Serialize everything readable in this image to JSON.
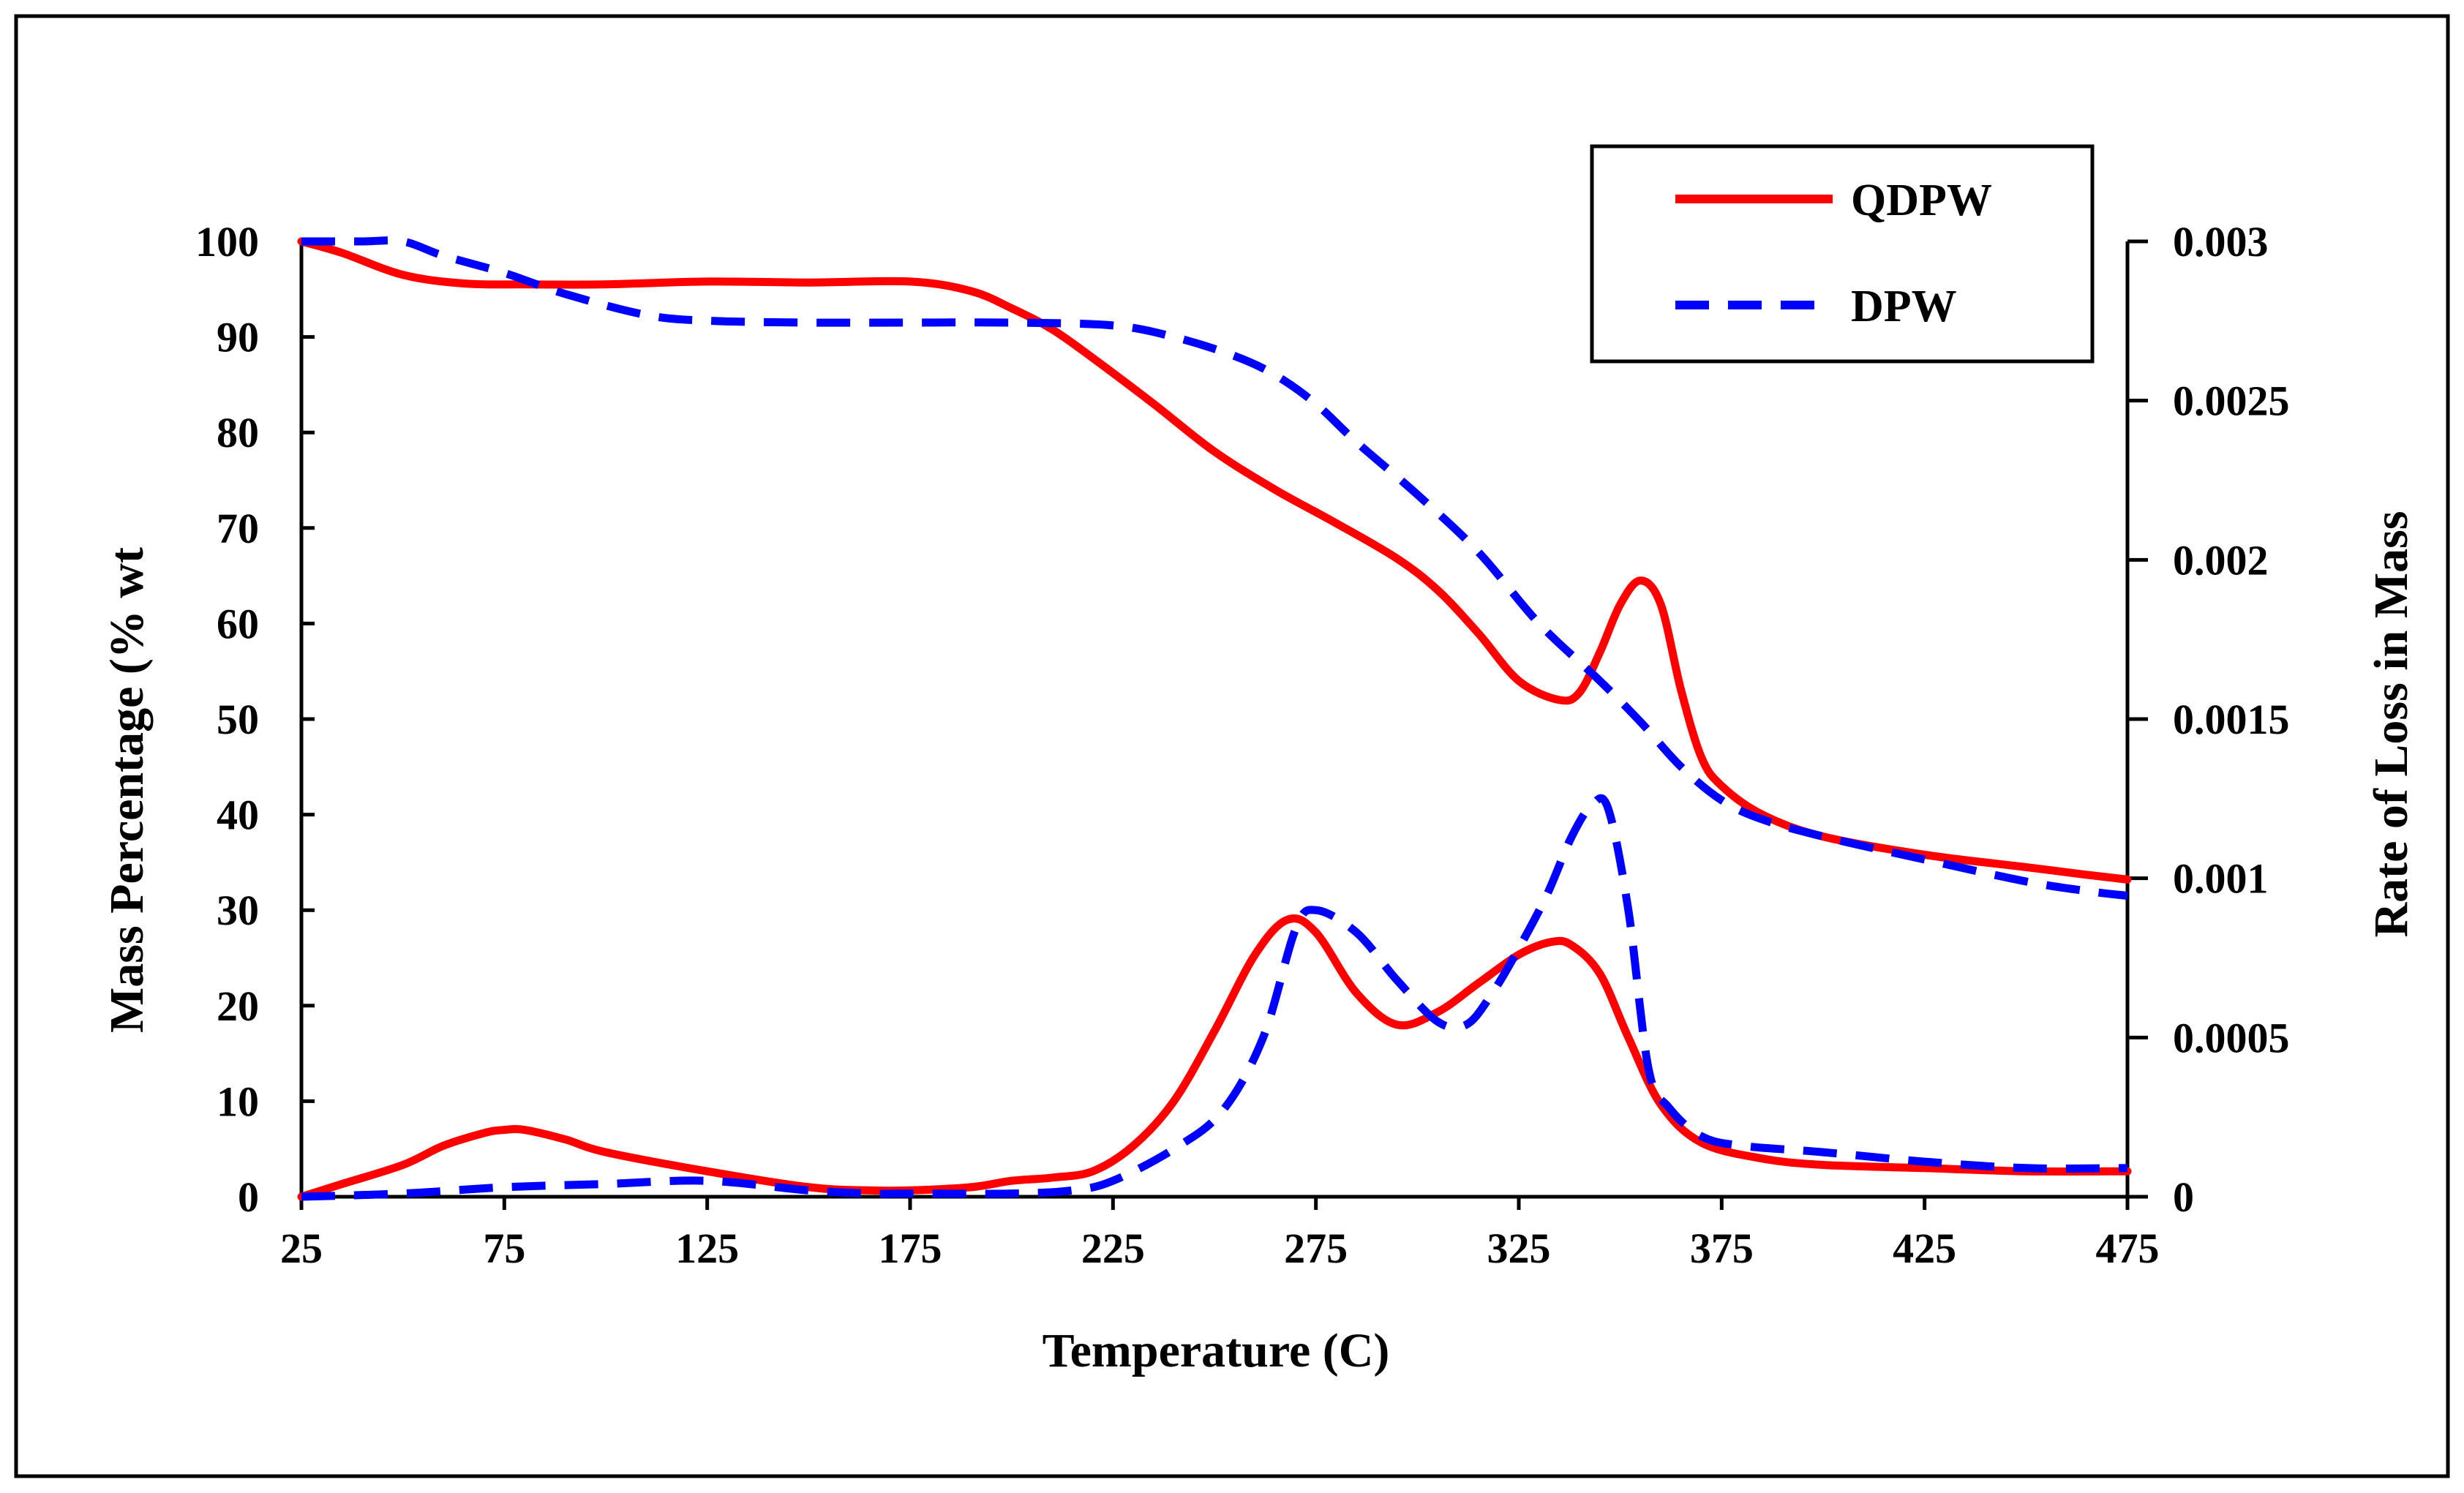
{
  "chart_data": {
    "type": "line",
    "title": "",
    "xlabel": "Temperature (C)",
    "ylabel": "Mass Percentage (% wt",
    "y2label": "Rate of Loss in Mass",
    "xlim": [
      25,
      475
    ],
    "ylim": [
      0,
      100
    ],
    "y2lim": [
      0,
      0.003
    ],
    "x_ticks": [
      "25",
      "75",
      "125",
      "175",
      "225",
      "275",
      "325",
      "375",
      "425",
      "475"
    ],
    "y_ticks": [
      "0",
      "10",
      "20",
      "30",
      "40",
      "50",
      "60",
      "70",
      "80",
      "90",
      "100"
    ],
    "y2_ticks": [
      "0",
      "0.0005",
      "0.001",
      "0.0015",
      "0.002",
      "0.0025",
      "0.003"
    ],
    "grid": false,
    "legend": {
      "position": "top-right",
      "entries": [
        {
          "label": "QDPW",
          "color": "#ff0000",
          "dash": "solid"
        },
        {
          "label": "DPW",
          "color": "#0000ff",
          "dash": "dashed"
        }
      ]
    },
    "series": [
      {
        "name": "QDPW",
        "kind": "mass",
        "axis": "left",
        "color": "#ff0000",
        "dash": "solid",
        "points": [
          [
            25,
            100
          ],
          [
            35,
            98.8
          ],
          [
            50,
            96.5
          ],
          [
            65,
            95.6
          ],
          [
            80,
            95.5
          ],
          [
            100,
            95.5
          ],
          [
            125,
            95.8
          ],
          [
            150,
            95.7
          ],
          [
            175,
            95.8
          ],
          [
            190,
            94.8
          ],
          [
            200,
            93
          ],
          [
            210,
            90.8
          ],
          [
            220,
            87.8
          ],
          [
            235,
            83
          ],
          [
            250,
            78
          ],
          [
            265,
            74
          ],
          [
            280,
            70.5
          ],
          [
            295,
            66.8
          ],
          [
            305,
            63.5
          ],
          [
            315,
            59
          ],
          [
            325,
            54
          ],
          [
            335,
            52
          ],
          [
            340,
            52.8
          ],
          [
            345,
            57
          ],
          [
            350,
            62
          ],
          [
            355,
            64.5
          ],
          [
            360,
            62
          ],
          [
            365,
            53
          ],
          [
            370,
            46
          ],
          [
            375,
            43
          ],
          [
            385,
            40
          ],
          [
            400,
            37.7
          ],
          [
            425,
            35.8
          ],
          [
            450,
            34.5
          ],
          [
            465,
            33.7
          ],
          [
            475,
            33.2
          ]
        ]
      },
      {
        "name": "DPW",
        "kind": "mass",
        "axis": "left",
        "color": "#0000ff",
        "dash": "dashed",
        "points": [
          [
            25,
            100
          ],
          [
            40,
            100
          ],
          [
            50,
            100
          ],
          [
            60,
            98.5
          ],
          [
            75,
            96.7
          ],
          [
            90,
            94.5
          ],
          [
            110,
            92.3
          ],
          [
            125,
            91.7
          ],
          [
            150,
            91.5
          ],
          [
            175,
            91.5
          ],
          [
            200,
            91.5
          ],
          [
            225,
            91.2
          ],
          [
            240,
            90
          ],
          [
            255,
            88
          ],
          [
            265,
            86
          ],
          [
            275,
            83
          ],
          [
            285,
            79
          ],
          [
            300,
            73.5
          ],
          [
            315,
            67.5
          ],
          [
            330,
            60
          ],
          [
            345,
            54
          ],
          [
            355,
            49.7
          ],
          [
            365,
            45
          ],
          [
            375,
            41.5
          ],
          [
            385,
            39.5
          ],
          [
            400,
            37.7
          ],
          [
            425,
            35.3
          ],
          [
            450,
            33
          ],
          [
            465,
            32
          ],
          [
            475,
            31.5
          ]
        ]
      },
      {
        "name": "QDPW",
        "kind": "rate",
        "axis": "right",
        "color": "#ff0000",
        "dash": "solid",
        "points": [
          [
            25,
            0
          ],
          [
            35,
            4e-05
          ],
          [
            50,
            0.0001
          ],
          [
            60,
            0.00016
          ],
          [
            70,
            0.0002
          ],
          [
            75,
            0.00021
          ],
          [
            80,
            0.00021
          ],
          [
            90,
            0.00018
          ],
          [
            100,
            0.00014
          ],
          [
            125,
            8e-05
          ],
          [
            150,
            3e-05
          ],
          [
            165,
            2e-05
          ],
          [
            175,
            2e-05
          ],
          [
            190,
            3e-05
          ],
          [
            200,
            5e-05
          ],
          [
            210,
            6e-05
          ],
          [
            220,
            8e-05
          ],
          [
            230,
            0.00016
          ],
          [
            240,
            0.0003
          ],
          [
            250,
            0.00052
          ],
          [
            260,
            0.00076
          ],
          [
            268,
            0.00087
          ],
          [
            275,
            0.00083
          ],
          [
            285,
            0.00064
          ],
          [
            295,
            0.00054
          ],
          [
            305,
            0.00058
          ],
          [
            315,
            0.00067
          ],
          [
            325,
            0.00076
          ],
          [
            333,
            0.0008
          ],
          [
            338,
            0.00079
          ],
          [
            345,
            0.0007
          ],
          [
            352,
            0.0005
          ],
          [
            360,
            0.00029
          ],
          [
            370,
            0.00017
          ],
          [
            385,
            0.00012
          ],
          [
            400,
            0.0001
          ],
          [
            425,
            9e-05
          ],
          [
            450,
            8e-05
          ],
          [
            475,
            8e-05
          ]
        ]
      },
      {
        "name": "DPW",
        "kind": "rate",
        "axis": "right",
        "color": "#0000ff",
        "dash": "dashed",
        "points": [
          [
            25,
            0
          ],
          [
            50,
            1e-05
          ],
          [
            75,
            3e-05
          ],
          [
            100,
            4e-05
          ],
          [
            125,
            5e-05
          ],
          [
            150,
            2e-05
          ],
          [
            165,
            1e-05
          ],
          [
            175,
            1e-05
          ],
          [
            200,
            1e-05
          ],
          [
            215,
            2e-05
          ],
          [
            225,
            5e-05
          ],
          [
            240,
            0.00015
          ],
          [
            252,
            0.00027
          ],
          [
            262,
            0.0005
          ],
          [
            270,
            0.00084
          ],
          [
            275,
            0.0009
          ],
          [
            285,
            0.00083
          ],
          [
            295,
            0.00068
          ],
          [
            305,
            0.00055
          ],
          [
            312,
            0.00054
          ],
          [
            318,
            0.00063
          ],
          [
            325,
            0.00078
          ],
          [
            332,
            0.00095
          ],
          [
            338,
            0.00113
          ],
          [
            343,
            0.00123
          ],
          [
            347,
            0.00122
          ],
          [
            352,
            0.0009
          ],
          [
            357,
            0.0004
          ],
          [
            362,
            0.00028
          ],
          [
            370,
            0.00019
          ],
          [
            380,
            0.00016
          ],
          [
            400,
            0.00014
          ],
          [
            425,
            0.00011
          ],
          [
            450,
            9e-05
          ],
          [
            475,
            9e-05
          ]
        ]
      }
    ]
  }
}
